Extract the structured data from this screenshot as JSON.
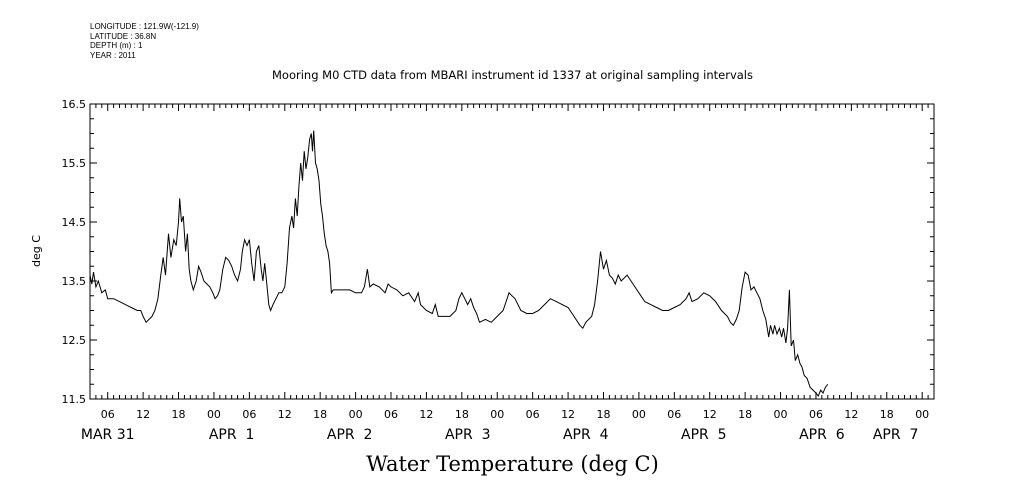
{
  "meta": {
    "longitude": "LONGITUDE : 121.9W(-121.9)",
    "latitude": "LATITUDE : 36.8N",
    "depth": "DEPTH (m) : 1",
    "year": "YEAR : 2011"
  },
  "chart_data": {
    "type": "line",
    "title": "Mooring M0 CTD data from MBARI instrument id 1337 at original sampling intervals",
    "xlabel": "Water Temperature (deg C)",
    "ylabel": "deg C",
    "ylim": [
      11.5,
      16.5
    ],
    "yticks": [
      "11.5",
      "12.5",
      "13.5",
      "14.5",
      "15.5",
      "16.5"
    ],
    "x_unit": "hours since 2011-03-31 00:00",
    "xlim": [
      3,
      146
    ],
    "x_hour_ticks": [
      {
        "x": 6,
        "label": "06"
      },
      {
        "x": 12,
        "label": "12"
      },
      {
        "x": 18,
        "label": "18"
      },
      {
        "x": 24,
        "label": "00"
      },
      {
        "x": 30,
        "label": "06"
      },
      {
        "x": 36,
        "label": "12"
      },
      {
        "x": 42,
        "label": "18"
      },
      {
        "x": 48,
        "label": "00"
      },
      {
        "x": 54,
        "label": "06"
      },
      {
        "x": 60,
        "label": "12"
      },
      {
        "x": 66,
        "label": "18"
      },
      {
        "x": 72,
        "label": "00"
      },
      {
        "x": 78,
        "label": "06"
      },
      {
        "x": 84,
        "label": "12"
      },
      {
        "x": 90,
        "label": "18"
      },
      {
        "x": 96,
        "label": "00"
      },
      {
        "x": 102,
        "label": "06"
      },
      {
        "x": 108,
        "label": "12"
      },
      {
        "x": 114,
        "label": "18"
      },
      {
        "x": 120,
        "label": "00"
      },
      {
        "x": 126,
        "label": "06"
      },
      {
        "x": 132,
        "label": "12"
      },
      {
        "x": 138,
        "label": "18"
      },
      {
        "x": 144,
        "label": "00"
      }
    ],
    "x_day_labels": [
      {
        "x": 6,
        "label": "MAR 31"
      },
      {
        "x": 27,
        "label": "APR  1"
      },
      {
        "x": 47,
        "label": "APR  2"
      },
      {
        "x": 67,
        "label": "APR  3"
      },
      {
        "x": 87,
        "label": "APR  4"
      },
      {
        "x": 107,
        "label": "APR  5"
      },
      {
        "x": 127,
        "label": "APR  6"
      },
      {
        "x": 139.5,
        "label": "APR  7"
      }
    ],
    "series": [
      {
        "points": [
          [
            3,
            13.6
          ],
          [
            3.3,
            13.45
          ],
          [
            3.6,
            13.65
          ],
          [
            4,
            13.4
          ],
          [
            4.4,
            13.5
          ],
          [
            5,
            13.3
          ],
          [
            5.6,
            13.35
          ],
          [
            6,
            13.2
          ],
          [
            7,
            13.2
          ],
          [
            8,
            13.15
          ],
          [
            9,
            13.1
          ],
          [
            10,
            13.05
          ],
          [
            11,
            13.0
          ],
          [
            11.6,
            13.0
          ],
          [
            12,
            12.9
          ],
          [
            12.5,
            12.8
          ],
          [
            13,
            12.85
          ],
          [
            13.5,
            12.9
          ],
          [
            14,
            13.0
          ],
          [
            14.5,
            13.2
          ],
          [
            15,
            13.6
          ],
          [
            15.4,
            13.9
          ],
          [
            15.8,
            13.6
          ],
          [
            16.3,
            14.3
          ],
          [
            16.7,
            13.9
          ],
          [
            17.2,
            14.2
          ],
          [
            17.6,
            14.1
          ],
          [
            18,
            14.5
          ],
          [
            18.2,
            14.9
          ],
          [
            18.5,
            14.5
          ],
          [
            18.8,
            14.6
          ],
          [
            19.2,
            14.0
          ],
          [
            19.5,
            14.3
          ],
          [
            19.8,
            13.7
          ],
          [
            20.1,
            13.5
          ],
          [
            20.5,
            13.35
          ],
          [
            21,
            13.5
          ],
          [
            21.4,
            13.75
          ],
          [
            21.8,
            13.65
          ],
          [
            22.3,
            13.5
          ],
          [
            22.8,
            13.45
          ],
          [
            23.3,
            13.4
          ],
          [
            23.8,
            13.3
          ],
          [
            24.2,
            13.2
          ],
          [
            24.6,
            13.25
          ],
          [
            25,
            13.35
          ],
          [
            25.5,
            13.7
          ],
          [
            26,
            13.9
          ],
          [
            26.5,
            13.85
          ],
          [
            27,
            13.75
          ],
          [
            27.5,
            13.6
          ],
          [
            28,
            13.5
          ],
          [
            28.5,
            13.7
          ],
          [
            28.8,
            14.0
          ],
          [
            29.2,
            14.2
          ],
          [
            29.6,
            14.1
          ],
          [
            30,
            14.2
          ],
          [
            30.4,
            13.8
          ],
          [
            30.8,
            13.5
          ],
          [
            31.2,
            14.0
          ],
          [
            31.6,
            14.1
          ],
          [
            32,
            13.7
          ],
          [
            32.3,
            13.5
          ],
          [
            32.6,
            13.8
          ],
          [
            33,
            13.4
          ],
          [
            33.3,
            13.1
          ],
          [
            33.6,
            13.0
          ],
          [
            34,
            13.1
          ],
          [
            34.5,
            13.2
          ],
          [
            35,
            13.3
          ],
          [
            35.5,
            13.3
          ],
          [
            36,
            13.4
          ],
          [
            36.4,
            13.8
          ],
          [
            36.8,
            14.4
          ],
          [
            37.2,
            14.6
          ],
          [
            37.5,
            14.4
          ],
          [
            37.8,
            14.9
          ],
          [
            38.1,
            14.6
          ],
          [
            38.4,
            15.1
          ],
          [
            38.7,
            15.5
          ],
          [
            39,
            15.2
          ],
          [
            39.3,
            15.7
          ],
          [
            39.6,
            15.4
          ],
          [
            39.9,
            15.6
          ],
          [
            40.2,
            15.9
          ],
          [
            40.5,
            16.0
          ],
          [
            40.7,
            15.7
          ],
          [
            40.9,
            16.05
          ],
          [
            41.2,
            15.5
          ],
          [
            41.5,
            15.4
          ],
          [
            41.8,
            15.2
          ],
          [
            42.1,
            14.8
          ],
          [
            42.4,
            14.6
          ],
          [
            42.7,
            14.3
          ],
          [
            43,
            14.1
          ],
          [
            43.3,
            14.0
          ],
          [
            43.6,
            13.8
          ],
          [
            43.9,
            13.3
          ],
          [
            44.2,
            13.35
          ],
          [
            45,
            13.35
          ],
          [
            46,
            13.35
          ],
          [
            47,
            13.35
          ],
          [
            48,
            13.3
          ],
          [
            49,
            13.3
          ],
          [
            49.5,
            13.4
          ],
          [
            50,
            13.7
          ],
          [
            50.4,
            13.4
          ],
          [
            51,
            13.45
          ],
          [
            52,
            13.4
          ],
          [
            53,
            13.3
          ],
          [
            53.5,
            13.45
          ],
          [
            54,
            13.4
          ],
          [
            55,
            13.35
          ],
          [
            56,
            13.25
          ],
          [
            57,
            13.3
          ],
          [
            58,
            13.15
          ],
          [
            58.6,
            13.3
          ],
          [
            59,
            13.1
          ],
          [
            60,
            13.0
          ],
          [
            61,
            12.95
          ],
          [
            61.5,
            13.1
          ],
          [
            62,
            12.9
          ],
          [
            63,
            12.9
          ],
          [
            64,
            12.9
          ],
          [
            65,
            13.0
          ],
          [
            65.5,
            13.2
          ],
          [
            66,
            13.3
          ],
          [
            66.5,
            13.2
          ],
          [
            67,
            13.1
          ],
          [
            67.5,
            13.2
          ],
          [
            68,
            13.05
          ],
          [
            68.5,
            12.95
          ],
          [
            69,
            12.8
          ],
          [
            70,
            12.85
          ],
          [
            71,
            12.8
          ],
          [
            72,
            12.9
          ],
          [
            73,
            13.0
          ],
          [
            73.5,
            13.15
          ],
          [
            74,
            13.3
          ],
          [
            74.5,
            13.25
          ],
          [
            75,
            13.2
          ],
          [
            76,
            13.0
          ],
          [
            77,
            12.95
          ],
          [
            78,
            12.95
          ],
          [
            79,
            13.0
          ],
          [
            80,
            13.1
          ],
          [
            81,
            13.2
          ],
          [
            82,
            13.15
          ],
          [
            83,
            13.1
          ],
          [
            84,
            13.05
          ],
          [
            85,
            12.9
          ],
          [
            86,
            12.75
          ],
          [
            86.5,
            12.7
          ],
          [
            87,
            12.8
          ],
          [
            88,
            12.9
          ],
          [
            88.5,
            13.1
          ],
          [
            89,
            13.5
          ],
          [
            89.5,
            14.0
          ],
          [
            90,
            13.7
          ],
          [
            90.5,
            13.85
          ],
          [
            91,
            13.6
          ],
          [
            91.5,
            13.55
          ],
          [
            92,
            13.45
          ],
          [
            92.5,
            13.6
          ],
          [
            93,
            13.5
          ],
          [
            94,
            13.6
          ],
          [
            95,
            13.45
          ],
          [
            96,
            13.3
          ],
          [
            97,
            13.15
          ],
          [
            98,
            13.1
          ],
          [
            99,
            13.05
          ],
          [
            100,
            13.0
          ],
          [
            101,
            13.0
          ],
          [
            102,
            13.05
          ],
          [
            103,
            13.1
          ],
          [
            104,
            13.2
          ],
          [
            104.5,
            13.3
          ],
          [
            105,
            13.15
          ],
          [
            106,
            13.2
          ],
          [
            107,
            13.3
          ],
          [
            108,
            13.25
          ],
          [
            109,
            13.15
          ],
          [
            110,
            13.0
          ],
          [
            111,
            12.9
          ],
          [
            111.5,
            12.8
          ],
          [
            112,
            12.75
          ],
          [
            112.5,
            12.85
          ],
          [
            113,
            13.0
          ],
          [
            113.5,
            13.4
          ],
          [
            114,
            13.65
          ],
          [
            114.5,
            13.6
          ],
          [
            115,
            13.35
          ],
          [
            115.5,
            13.4
          ],
          [
            116,
            13.3
          ],
          [
            116.5,
            13.2
          ],
          [
            117,
            13.0
          ],
          [
            117.5,
            12.85
          ],
          [
            118,
            12.55
          ],
          [
            118.3,
            12.75
          ],
          [
            118.7,
            12.6
          ],
          [
            119,
            12.75
          ],
          [
            119.4,
            12.6
          ],
          [
            119.8,
            12.7
          ],
          [
            120.2,
            12.55
          ],
          [
            120.5,
            12.7
          ],
          [
            120.9,
            12.45
          ],
          [
            121.2,
            12.7
          ],
          [
            121.5,
            13.35
          ],
          [
            121.8,
            12.4
          ],
          [
            122.2,
            12.5
          ],
          [
            122.5,
            12.15
          ],
          [
            122.9,
            12.25
          ],
          [
            123.3,
            12.1
          ],
          [
            123.6,
            12.05
          ],
          [
            124,
            11.9
          ],
          [
            124.5,
            11.85
          ],
          [
            125,
            11.7
          ],
          [
            125.5,
            11.65
          ],
          [
            126,
            11.6
          ],
          [
            126.4,
            11.55
          ],
          [
            126.8,
            11.65
          ],
          [
            127.2,
            11.6
          ],
          [
            127.6,
            11.7
          ],
          [
            128,
            11.75
          ]
        ]
      }
    ]
  }
}
